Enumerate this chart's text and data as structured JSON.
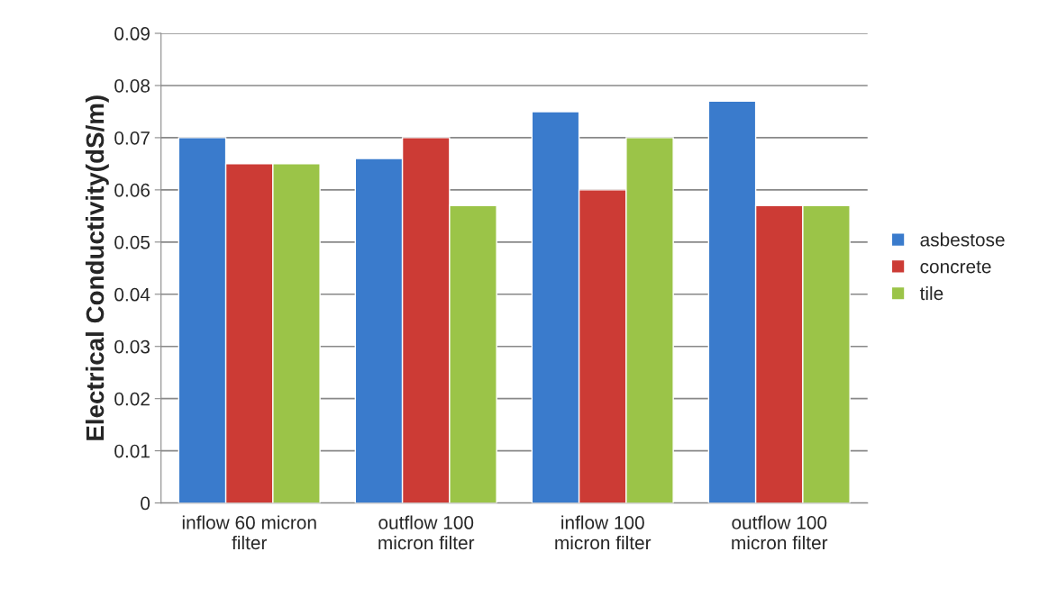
{
  "chart_data": {
    "type": "bar",
    "ylabel": "Electrical Conductivity(dS/m)",
    "categories": [
      "inflow 60 micron\nfilter",
      "outflow 100\nmicron filter",
      "inflow 100\nmicron filter",
      "outflow 100\nmicron filter"
    ],
    "series": [
      {
        "name": "asbestose",
        "color": "#3a7bcc",
        "values": [
          0.07,
          0.066,
          0.075,
          0.077
        ]
      },
      {
        "name": "concrete",
        "color": "#cc3b35",
        "values": [
          0.065,
          0.07,
          0.06,
          0.057
        ]
      },
      {
        "name": "tile",
        "color": "#9bc448",
        "values": [
          0.065,
          0.057,
          0.07,
          0.057
        ]
      }
    ],
    "ylim": [
      0,
      0.09
    ],
    "yticks": [
      0,
      0.01,
      0.02,
      0.03,
      0.04,
      0.05,
      0.06,
      0.07,
      0.08,
      0.09
    ],
    "grid": "y",
    "legend": "right"
  }
}
